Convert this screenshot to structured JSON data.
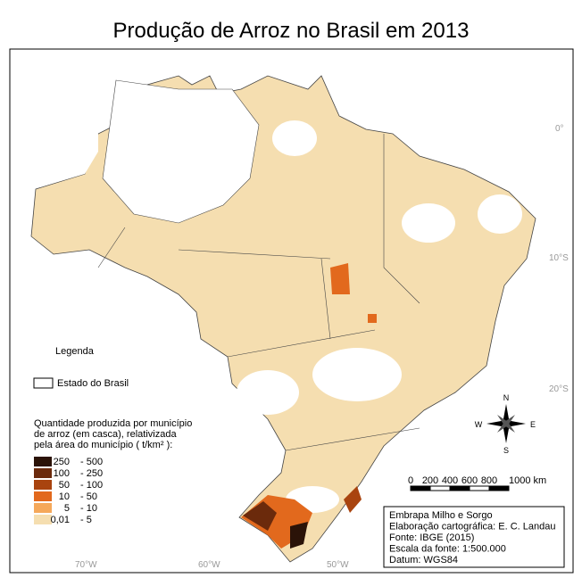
{
  "header": {
    "title": "Produção de Arroz no Brasil em 2013"
  },
  "coordinates": {
    "lat": [
      "0°",
      "10°S",
      "20°S"
    ],
    "lon": [
      "70°W",
      "60°W",
      "50°W"
    ]
  },
  "legend": {
    "title": "Legenda",
    "state_label": "Estado do Brasil",
    "quantity_title": [
      "Quantidade produzida por município",
      "de arroz (em casca), relativizada",
      "pela área do município ( t/km² ):"
    ],
    "classes": [
      {
        "low": "250",
        "high": "- 500",
        "color": "#2b1308"
      },
      {
        "low": "100",
        "high": "- 250",
        "color": "#6b2a0c"
      },
      {
        "low": "50",
        "high": "- 100",
        "color": "#a9440f"
      },
      {
        "low": "10",
        "high": "- 50",
        "color": "#e2691d"
      },
      {
        "low": "5",
        "high": "- 10",
        "color": "#f5a85a"
      },
      {
        "low": "0,01",
        "high": "- 5",
        "color": "#f5deb0"
      }
    ]
  },
  "compass": {
    "n": "N",
    "e": "E",
    "s": "S",
    "w": "W"
  },
  "scale_bar": {
    "labels": [
      "0",
      "200",
      "400",
      "600",
      "800",
      "1000 km"
    ]
  },
  "credits": [
    "Embrapa Milho e Sorgo",
    "Elaboração cartográfica: E. C. Landau",
    "Fonte: IBGE (2015)",
    "Escala da fonte: 1:500.000",
    "Datum: WGS84"
  ]
}
